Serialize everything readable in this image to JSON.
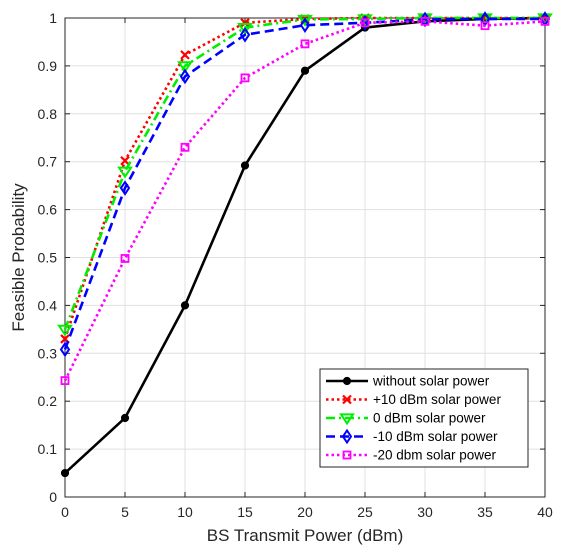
{
  "chart_data": {
    "type": "line",
    "title": "",
    "xlabel": "BS Transmit Power (dBm)",
    "ylabel": "Feasible Probability",
    "xlim": [
      0,
      40
    ],
    "ylim": [
      0,
      1
    ],
    "xticks": [
      "0",
      "5",
      "10",
      "15",
      "20",
      "25",
      "30",
      "35",
      "40"
    ],
    "yticks": [
      "0",
      "0.1",
      "0.2",
      "0.3",
      "0.4",
      "0.5",
      "0.6",
      "0.7",
      "0.8",
      "0.9",
      "1"
    ],
    "grid": true,
    "legend_position": "bottom-right",
    "x": [
      0,
      5,
      10,
      15,
      20,
      25,
      30,
      35,
      40
    ],
    "series": [
      {
        "name": "without solar power",
        "color": "#000000",
        "line_style": "solid",
        "marker": "filled-circle",
        "values": [
          0.05,
          0.165,
          0.4,
          0.692,
          0.89,
          0.98,
          0.993,
          0.998,
          1.0
        ]
      },
      {
        "name": "+10 dBm solar power",
        "color": "#ff0000",
        "line_style": "dotted",
        "marker": "x",
        "values": [
          0.33,
          0.702,
          0.923,
          0.99,
          0.998,
          1.0,
          1.0,
          1.0,
          1.0
        ]
      },
      {
        "name": "0 dBm solar power",
        "color": "#00ee00",
        "line_style": "dash-dot",
        "marker": "triangle-down",
        "values": [
          0.35,
          0.68,
          0.9,
          0.98,
          0.997,
          0.998,
          1.0,
          1.0,
          1.0
        ]
      },
      {
        "name": "-10 dBm solar power",
        "color": "#0000ff",
        "line_style": "dashed",
        "marker": "diamond",
        "values": [
          0.308,
          0.645,
          0.878,
          0.965,
          0.985,
          0.99,
          0.997,
          0.998,
          0.998
        ]
      },
      {
        "name": "-20 dbm solar power",
        "color": "#ff00ff",
        "line_style": "dotted",
        "marker": "square",
        "values": [
          0.243,
          0.498,
          0.73,
          0.875,
          0.946,
          0.99,
          0.993,
          0.984,
          0.993
        ]
      }
    ]
  }
}
